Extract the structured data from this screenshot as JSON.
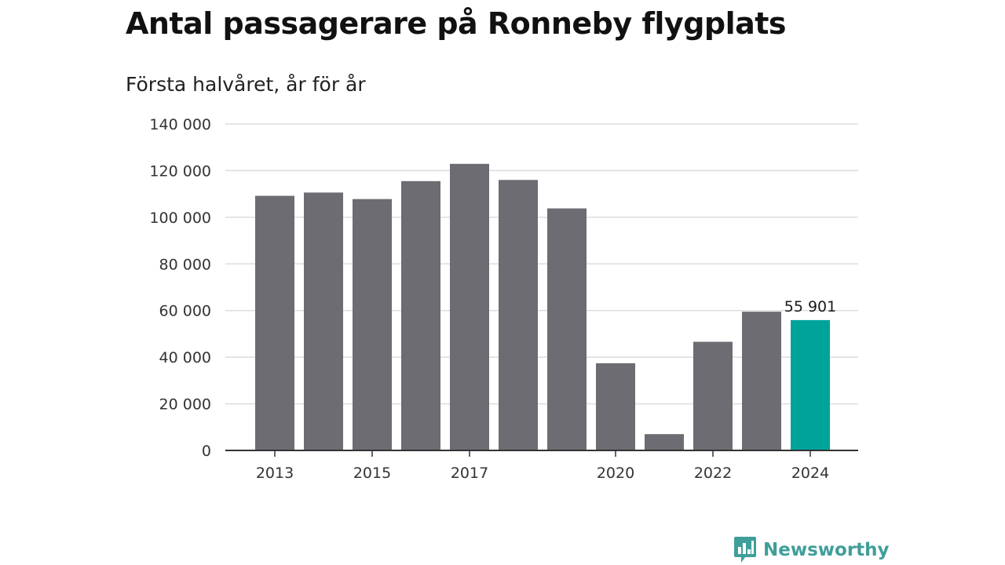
{
  "title": "Antal passagerare på Ronneby flygplats",
  "subtitle": "Första halvåret, år för år",
  "brand": {
    "name": "Newsworthy",
    "icon": "newsworthy-logo-icon",
    "color": "#3f9e9a"
  },
  "colors": {
    "bar": "#6d6c72",
    "highlight": "#00a39a",
    "grid": "#dddddd",
    "axis": "#333333"
  },
  "chart_data": {
    "type": "bar",
    "title": "Antal passagerare på Ronneby flygplats",
    "subtitle": "Första halvåret, år för år",
    "xlabel": "",
    "ylabel": "",
    "categories": [
      "2013",
      "2014",
      "2015",
      "2016",
      "2017",
      "2018",
      "2019",
      "2020",
      "2021",
      "2022",
      "2023",
      "2024"
    ],
    "values": [
      109200,
      110600,
      107800,
      115500,
      122900,
      116000,
      103800,
      37400,
      7000,
      46600,
      59500,
      55901
    ],
    "highlight_index": 11,
    "data_labels": [
      {
        "index": 11,
        "text": "55 901"
      }
    ],
    "x_tick_labels": [
      {
        "index": 0,
        "text": "2013"
      },
      {
        "index": 2,
        "text": "2015"
      },
      {
        "index": 4,
        "text": "2017"
      },
      {
        "index": 7,
        "text": "2020"
      },
      {
        "index": 9,
        "text": "2022"
      },
      {
        "index": 11,
        "text": "2024"
      }
    ],
    "y_ticks": [
      {
        "value": 0,
        "label": "0"
      },
      {
        "value": 20000,
        "label": "20 000"
      },
      {
        "value": 40000,
        "label": "40 000"
      },
      {
        "value": 60000,
        "label": "60 000"
      },
      {
        "value": 80000,
        "label": "80 000"
      },
      {
        "value": 100000,
        "label": "100 000"
      },
      {
        "value": 120000,
        "label": "120 000"
      },
      {
        "value": 140000,
        "label": "140 000"
      }
    ],
    "ylim": [
      0,
      140000
    ],
    "grid": true,
    "legend": "none"
  }
}
